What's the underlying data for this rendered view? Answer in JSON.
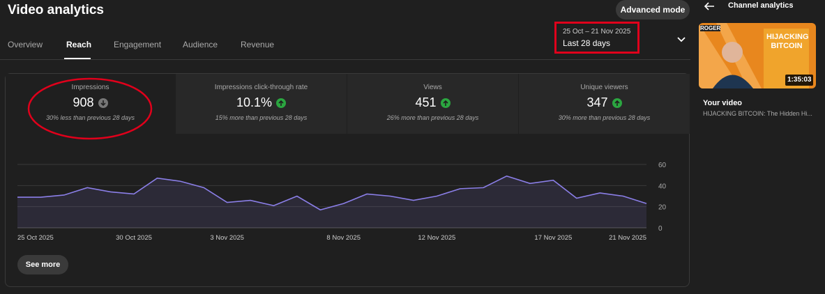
{
  "header": {
    "title": "Video analytics",
    "button": "Advanced mode"
  },
  "tabs": [
    "Overview",
    "Reach",
    "Engagement",
    "Audience",
    "Revenue"
  ],
  "date_range": {
    "dates": "25 Oct – 21 Nov 2025",
    "period": "Last 28 days"
  },
  "metrics": [
    {
      "label": "Impressions",
      "value": "908",
      "change": "30% less than previous 28 days"
    },
    {
      "label": "Impressions click-through rate",
      "value": "10.1%",
      "change": "15% more than previous 28 days"
    },
    {
      "label": "Views",
      "value": "451",
      "change": "26% more than previous 28 days"
    },
    {
      "label": "Unique viewers",
      "value": "347",
      "change": "30% more than previous 28 days"
    }
  ],
  "chart_data": {
    "type": "line",
    "categories": [
      "25 Oct 2025",
      null,
      null,
      null,
      null,
      "30 Oct 2025",
      null,
      null,
      null,
      "3 Nov 2025",
      null,
      null,
      null,
      null,
      "8 Nov 2025",
      null,
      null,
      null,
      "12 Nov 2025",
      null,
      null,
      null,
      null,
      "17 Nov 2025",
      null,
      null,
      null,
      "21 Nov 2025"
    ],
    "series": [
      {
        "name": "Impressions",
        "color": "#8b7fe8",
        "values": [
          29,
          29,
          31,
          38,
          34,
          32,
          47,
          44,
          38,
          24,
          26,
          21,
          30,
          17,
          23,
          32,
          30,
          26,
          30,
          37,
          38,
          49,
          42,
          45,
          28,
          33,
          30,
          23
        ]
      }
    ],
    "ylim": [
      0,
      60
    ],
    "yticks": [
      0,
      20,
      40,
      60
    ],
    "grid": true
  },
  "see_more": "See more",
  "sidebar": {
    "back": "Channel analytics",
    "thumbnail_tag": "ROGER",
    "thumbnail_text": "HIJACKING BITCOIN",
    "duration": "1:35:03",
    "label": "Your video",
    "title": "HIJACKING BITCOIN: The Hidden Hi..."
  }
}
